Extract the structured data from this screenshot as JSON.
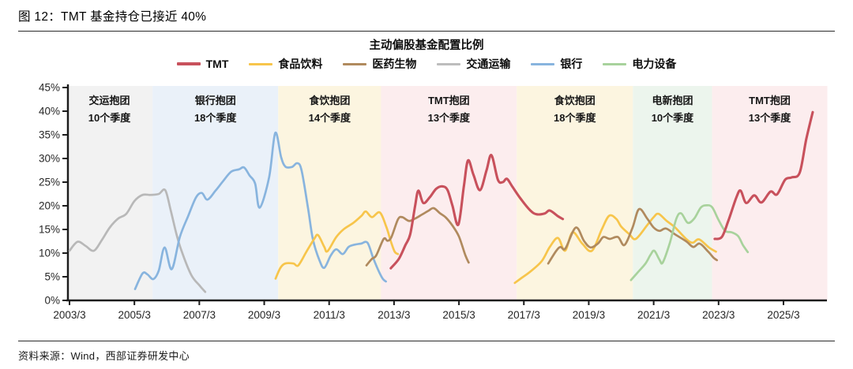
{
  "figure": {
    "caption": "图 12：TMT 基金持仓已接近 40%",
    "source": "资料来源：Wind，西部证券研发中心"
  },
  "chart_data": {
    "type": "line",
    "title": "主动偏股基金配置比例",
    "xlabel": "",
    "ylabel": "",
    "ylim": [
      0,
      45
    ],
    "grid": false,
    "legend_position": "top-center",
    "y_ticks": [
      {
        "v": 0,
        "label": "0%"
      },
      {
        "v": 5,
        "label": "5%"
      },
      {
        "v": 10,
        "label": "10%"
      },
      {
        "v": 15,
        "label": "15%"
      },
      {
        "v": 20,
        "label": "20%"
      },
      {
        "v": 25,
        "label": "25%"
      },
      {
        "v": 30,
        "label": "30%"
      },
      {
        "v": 35,
        "label": "35%"
      },
      {
        "v": 40,
        "label": "40%"
      },
      {
        "v": 45,
        "label": "45%"
      }
    ],
    "x_ticks": [
      {
        "t": 2003.2,
        "label": "2003/3"
      },
      {
        "t": 2005.2,
        "label": "2005/3"
      },
      {
        "t": 2007.2,
        "label": "2007/3"
      },
      {
        "t": 2009.2,
        "label": "2009/3"
      },
      {
        "t": 2011.2,
        "label": "2011/3"
      },
      {
        "t": 2013.2,
        "label": "2013/3"
      },
      {
        "t": 2015.2,
        "label": "2015/3"
      },
      {
        "t": 2017.2,
        "label": "2017/3"
      },
      {
        "t": 2019.2,
        "label": "2019/3"
      },
      {
        "t": 2021.2,
        "label": "2021/3"
      },
      {
        "t": 2023.2,
        "label": "2023/3"
      },
      {
        "t": 2025.2,
        "label": "2025/3"
      }
    ],
    "regions": [
      {
        "label": "交运抱团",
        "sub": "10个季度",
        "from": 2003.1,
        "to": 2005.76,
        "bg": "#f2f2f2"
      },
      {
        "label": "银行抱团",
        "sub": "18个季度",
        "from": 2005.76,
        "to": 2009.63,
        "bg": "#eaf1f9"
      },
      {
        "label": "食饮抱团",
        "sub": "14个季度",
        "from": 2009.63,
        "to": 2012.8,
        "bg": "#fcf5e0"
      },
      {
        "label": "TMT抱团",
        "sub": "13个季度",
        "from": 2012.8,
        "to": 2016.98,
        "bg": "#fcedee"
      },
      {
        "label": "食饮抱团",
        "sub": "18个季度",
        "from": 2016.98,
        "to": 2020.56,
        "bg": "#fcf5e0"
      },
      {
        "label": "电新抱团",
        "sub": "10个季度",
        "from": 2020.56,
        "to": 2023.0,
        "bg": "#ecf5ed"
      },
      {
        "label": "TMT抱团",
        "sub": "13个季度",
        "from": 2023.0,
        "to": 2026.55,
        "bg": "#fcedee"
      }
    ],
    "legend": [
      {
        "name": "TMT",
        "color": "#c8515c"
      },
      {
        "name": "食品饮料",
        "color": "#f7c54b"
      },
      {
        "name": "医药生物",
        "color": "#b08a5e"
      },
      {
        "name": "交通运输",
        "color": "#bdbdbd"
      },
      {
        "name": "银行",
        "color": "#88b4de"
      },
      {
        "name": "电力设备",
        "color": "#a8d29c"
      }
    ],
    "series": [
      {
        "name": "交通运输",
        "color": "#b8b8b8",
        "width": 2.7,
        "segments": [
          [
            [
              2003.2,
              10.5
            ],
            [
              2003.45,
              12.4
            ],
            [
              2003.7,
              11.5
            ],
            [
              2003.95,
              10.5
            ],
            [
              2004.2,
              12.8
            ],
            [
              2004.45,
              15.5
            ],
            [
              2004.7,
              17.3
            ],
            [
              2004.95,
              18.3
            ],
            [
              2005.2,
              21.0
            ],
            [
              2005.45,
              22.3
            ],
            [
              2005.7,
              22.3
            ],
            [
              2005.95,
              22.5
            ],
            [
              2006.15,
              23.3
            ],
            [
              2006.32,
              19.0
            ],
            [
              2006.5,
              13.9
            ],
            [
              2006.65,
              10.5
            ],
            [
              2006.95,
              5.4
            ],
            [
              2007.2,
              3.2
            ],
            [
              2007.38,
              1.8
            ]
          ]
        ]
      },
      {
        "name": "银行",
        "color": "#88b4de",
        "width": 2.7,
        "segments": [
          [
            [
              2005.22,
              2.4
            ],
            [
              2005.45,
              5.7
            ],
            [
              2005.6,
              5.5
            ],
            [
              2005.78,
              4.5
            ],
            [
              2005.95,
              6.3
            ],
            [
              2006.13,
              11.2
            ],
            [
              2006.35,
              6.6
            ],
            [
              2006.6,
              13.4
            ],
            [
              2006.86,
              17.9
            ],
            [
              2007.1,
              21.8
            ],
            [
              2007.28,
              22.7
            ],
            [
              2007.45,
              21.3
            ],
            [
              2007.7,
              23.2
            ],
            [
              2007.93,
              25.2
            ],
            [
              2008.18,
              27.2
            ],
            [
              2008.42,
              27.7
            ],
            [
              2008.58,
              28.1
            ],
            [
              2008.75,
              26.4
            ],
            [
              2008.92,
              24.7
            ],
            [
              2009.06,
              19.6
            ],
            [
              2009.35,
              26.0
            ],
            [
              2009.54,
              35.4
            ],
            [
              2009.72,
              30.3
            ],
            [
              2009.85,
              28.3
            ],
            [
              2010.05,
              28.2
            ],
            [
              2010.22,
              29.0
            ],
            [
              2010.35,
              27.5
            ],
            [
              2010.55,
              19.5
            ],
            [
              2010.7,
              12.9
            ],
            [
              2010.9,
              8.5
            ],
            [
              2011.05,
              6.9
            ],
            [
              2011.25,
              9.5
            ],
            [
              2011.42,
              10.8
            ],
            [
              2011.62,
              9.8
            ],
            [
              2011.8,
              11.3
            ],
            [
              2012.0,
              11.8
            ],
            [
              2012.18,
              12.0
            ],
            [
              2012.38,
              12.2
            ],
            [
              2012.55,
              9.1
            ],
            [
              2012.7,
              6.6
            ],
            [
              2012.85,
              4.6
            ],
            [
              2012.95,
              4.0
            ]
          ]
        ]
      },
      {
        "name": "食品饮料",
        "color": "#f7c54b",
        "width": 2.7,
        "segments": [
          [
            [
              2009.55,
              4.6
            ],
            [
              2009.7,
              6.9
            ],
            [
              2009.85,
              7.8
            ],
            [
              2010.1,
              7.8
            ],
            [
              2010.25,
              7.4
            ],
            [
              2010.5,
              10.3
            ],
            [
              2010.74,
              13.0
            ],
            [
              2010.86,
              13.8
            ],
            [
              2011.05,
              11.3
            ],
            [
              2011.15,
              10.4
            ],
            [
              2011.42,
              13.4
            ],
            [
              2011.66,
              15.1
            ],
            [
              2011.95,
              16.4
            ],
            [
              2012.2,
              17.9
            ],
            [
              2012.33,
              18.8
            ],
            [
              2012.52,
              17.6
            ],
            [
              2012.76,
              18.6
            ],
            [
              2012.96,
              15.6
            ],
            [
              2013.1,
              12.5
            ],
            [
              2013.22,
              10.3
            ],
            [
              2013.32,
              9.8
            ]
          ],
          [
            [
              2016.92,
              3.7
            ],
            [
              2017.1,
              4.6
            ],
            [
              2017.4,
              6.1
            ],
            [
              2017.75,
              8.3
            ],
            [
              2018.0,
              11.3
            ],
            [
              2018.25,
              13.2
            ],
            [
              2018.47,
              10.5
            ],
            [
              2018.7,
              14.4
            ],
            [
              2019.0,
              12.0
            ],
            [
              2019.3,
              10.5
            ],
            [
              2019.6,
              15.0
            ],
            [
              2019.83,
              17.9
            ],
            [
              2020.05,
              17.2
            ],
            [
              2020.2,
              15.6
            ],
            [
              2020.45,
              14.0
            ],
            [
              2020.65,
              13.0
            ],
            [
              2021.0,
              15.9
            ],
            [
              2021.2,
              17.6
            ],
            [
              2021.35,
              18.3
            ],
            [
              2021.6,
              16.8
            ],
            [
              2021.85,
              15.5
            ],
            [
              2022.2,
              13.0
            ],
            [
              2022.4,
              12.2
            ],
            [
              2022.6,
              12.9
            ],
            [
              2022.9,
              11.2
            ],
            [
              2023.12,
              10.3
            ]
          ]
        ]
      },
      {
        "name": "医药生物",
        "color": "#b08a5e",
        "width": 2.7,
        "segments": [
          [
            [
              2012.35,
              7.4
            ],
            [
              2012.52,
              8.8
            ],
            [
              2012.65,
              9.5
            ],
            [
              2012.88,
              13.0
            ],
            [
              2013.0,
              12.6
            ],
            [
              2013.12,
              13.4
            ],
            [
              2013.32,
              17.1
            ],
            [
              2013.45,
              17.6
            ],
            [
              2013.66,
              16.8
            ],
            [
              2013.85,
              17.3
            ],
            [
              2014.05,
              18.1
            ],
            [
              2014.25,
              18.9
            ],
            [
              2014.42,
              19.5
            ],
            [
              2014.62,
              18.4
            ],
            [
              2014.8,
              17.5
            ],
            [
              2015.0,
              15.8
            ],
            [
              2015.2,
              13.5
            ],
            [
              2015.4,
              9.5
            ],
            [
              2015.5,
              8.0
            ]
          ],
          [
            [
              2017.95,
              7.8
            ],
            [
              2018.2,
              10.5
            ],
            [
              2018.33,
              11.3
            ],
            [
              2018.48,
              11.0
            ],
            [
              2018.8,
              15.4
            ],
            [
              2019.05,
              12.6
            ],
            [
              2019.25,
              11.2
            ],
            [
              2019.48,
              12.0
            ],
            [
              2019.65,
              13.4
            ],
            [
              2019.85,
              13.0
            ],
            [
              2020.1,
              13.4
            ],
            [
              2020.3,
              11.7
            ],
            [
              2020.55,
              15.4
            ],
            [
              2020.75,
              19.3
            ],
            [
              2021.0,
              17.3
            ],
            [
              2021.2,
              15.4
            ],
            [
              2021.38,
              14.7
            ],
            [
              2021.58,
              15.2
            ],
            [
              2021.85,
              14.0
            ],
            [
              2022.2,
              12.5
            ],
            [
              2022.42,
              11.3
            ],
            [
              2022.62,
              12.0
            ],
            [
              2022.88,
              10.3
            ],
            [
              2023.05,
              9.0
            ],
            [
              2023.15,
              8.5
            ]
          ]
        ]
      },
      {
        "name": "电力设备",
        "color": "#a8d29c",
        "width": 2.7,
        "segments": [
          [
            [
              2020.5,
              4.3
            ],
            [
              2020.72,
              6.0
            ],
            [
              2020.95,
              7.8
            ],
            [
              2021.1,
              9.6
            ],
            [
              2021.22,
              10.5
            ],
            [
              2021.38,
              8.6
            ],
            [
              2021.48,
              8.0
            ],
            [
              2021.7,
              12.2
            ],
            [
              2021.9,
              17.3
            ],
            [
              2022.05,
              18.4
            ],
            [
              2022.25,
              16.4
            ],
            [
              2022.45,
              17.3
            ],
            [
              2022.65,
              19.6
            ],
            [
              2022.82,
              20.1
            ],
            [
              2023.0,
              19.7
            ],
            [
              2023.2,
              17.0
            ],
            [
              2023.4,
              14.7
            ],
            [
              2023.6,
              14.4
            ],
            [
              2023.8,
              13.6
            ],
            [
              2023.95,
              11.7
            ],
            [
              2024.1,
              10.2
            ]
          ]
        ]
      },
      {
        "name": "TMT",
        "color": "#c8515c",
        "width": 3.1,
        "segments": [
          [
            [
              2013.1,
              6.8
            ],
            [
              2013.35,
              8.8
            ],
            [
              2013.55,
              11.7
            ],
            [
              2013.7,
              14.0
            ],
            [
              2013.85,
              20.0
            ],
            [
              2013.95,
              23.2
            ],
            [
              2014.1,
              20.6
            ],
            [
              2014.3,
              21.8
            ],
            [
              2014.5,
              23.6
            ],
            [
              2014.7,
              24.1
            ],
            [
              2014.85,
              23.3
            ],
            [
              2015.0,
              20.0
            ],
            [
              2015.18,
              16.0
            ],
            [
              2015.35,
              24.0
            ],
            [
              2015.48,
              29.6
            ],
            [
              2015.65,
              26.5
            ],
            [
              2015.85,
              23.3
            ],
            [
              2016.05,
              27.5
            ],
            [
              2016.2,
              30.7
            ],
            [
              2016.4,
              25.5
            ],
            [
              2016.55,
              25.0
            ],
            [
              2016.68,
              25.7
            ],
            [
              2016.85,
              24.0
            ],
            [
              2017.1,
              21.5
            ],
            [
              2017.4,
              19.0
            ],
            [
              2017.6,
              18.2
            ],
            [
              2017.85,
              18.4
            ],
            [
              2018.0,
              19.0
            ],
            [
              2018.25,
              17.8
            ],
            [
              2018.4,
              17.2
            ]
          ],
          [
            [
              2023.08,
              13.0
            ],
            [
              2023.3,
              13.4
            ],
            [
              2023.5,
              16.8
            ],
            [
              2023.75,
              21.8
            ],
            [
              2023.88,
              23.2
            ],
            [
              2024.05,
              20.6
            ],
            [
              2024.3,
              22.2
            ],
            [
              2024.52,
              20.7
            ],
            [
              2024.8,
              23.0
            ],
            [
              2025.0,
              22.4
            ],
            [
              2025.25,
              25.5
            ],
            [
              2025.45,
              26.0
            ],
            [
              2025.7,
              27.0
            ],
            [
              2025.9,
              34.0
            ],
            [
              2026.1,
              39.8
            ]
          ]
        ]
      }
    ]
  },
  "colors": {
    "axis": "#1c1c1c",
    "tick_label": "#262626",
    "region_label": "#161616",
    "divider": "#2b2b2b"
  }
}
